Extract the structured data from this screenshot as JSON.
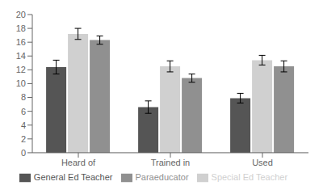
{
  "chart_data": {
    "type": "bar",
    "categories": [
      "Heard of",
      "Trained in",
      "Used"
    ],
    "series": [
      {
        "name": "General Ed Teacher",
        "color": "#555555",
        "values": [
          12.4,
          6.6,
          7.9
        ],
        "errors": [
          1.0,
          0.9,
          0.7
        ]
      },
      {
        "name": "Special Ed Teacher",
        "color": "#d0d0d0",
        "values": [
          17.2,
          12.5,
          13.4
        ],
        "errors": [
          0.8,
          0.8,
          0.7
        ]
      },
      {
        "name": "Paraeducator",
        "color": "#909090",
        "values": [
          16.3,
          10.8,
          12.5
        ],
        "errors": [
          0.6,
          0.6,
          0.8
        ]
      }
    ],
    "ylim": [
      0,
      20
    ],
    "yticks": [
      0,
      2,
      4,
      6,
      8,
      10,
      12,
      14,
      16,
      18,
      20
    ],
    "grid": false,
    "legend": "bottom"
  }
}
